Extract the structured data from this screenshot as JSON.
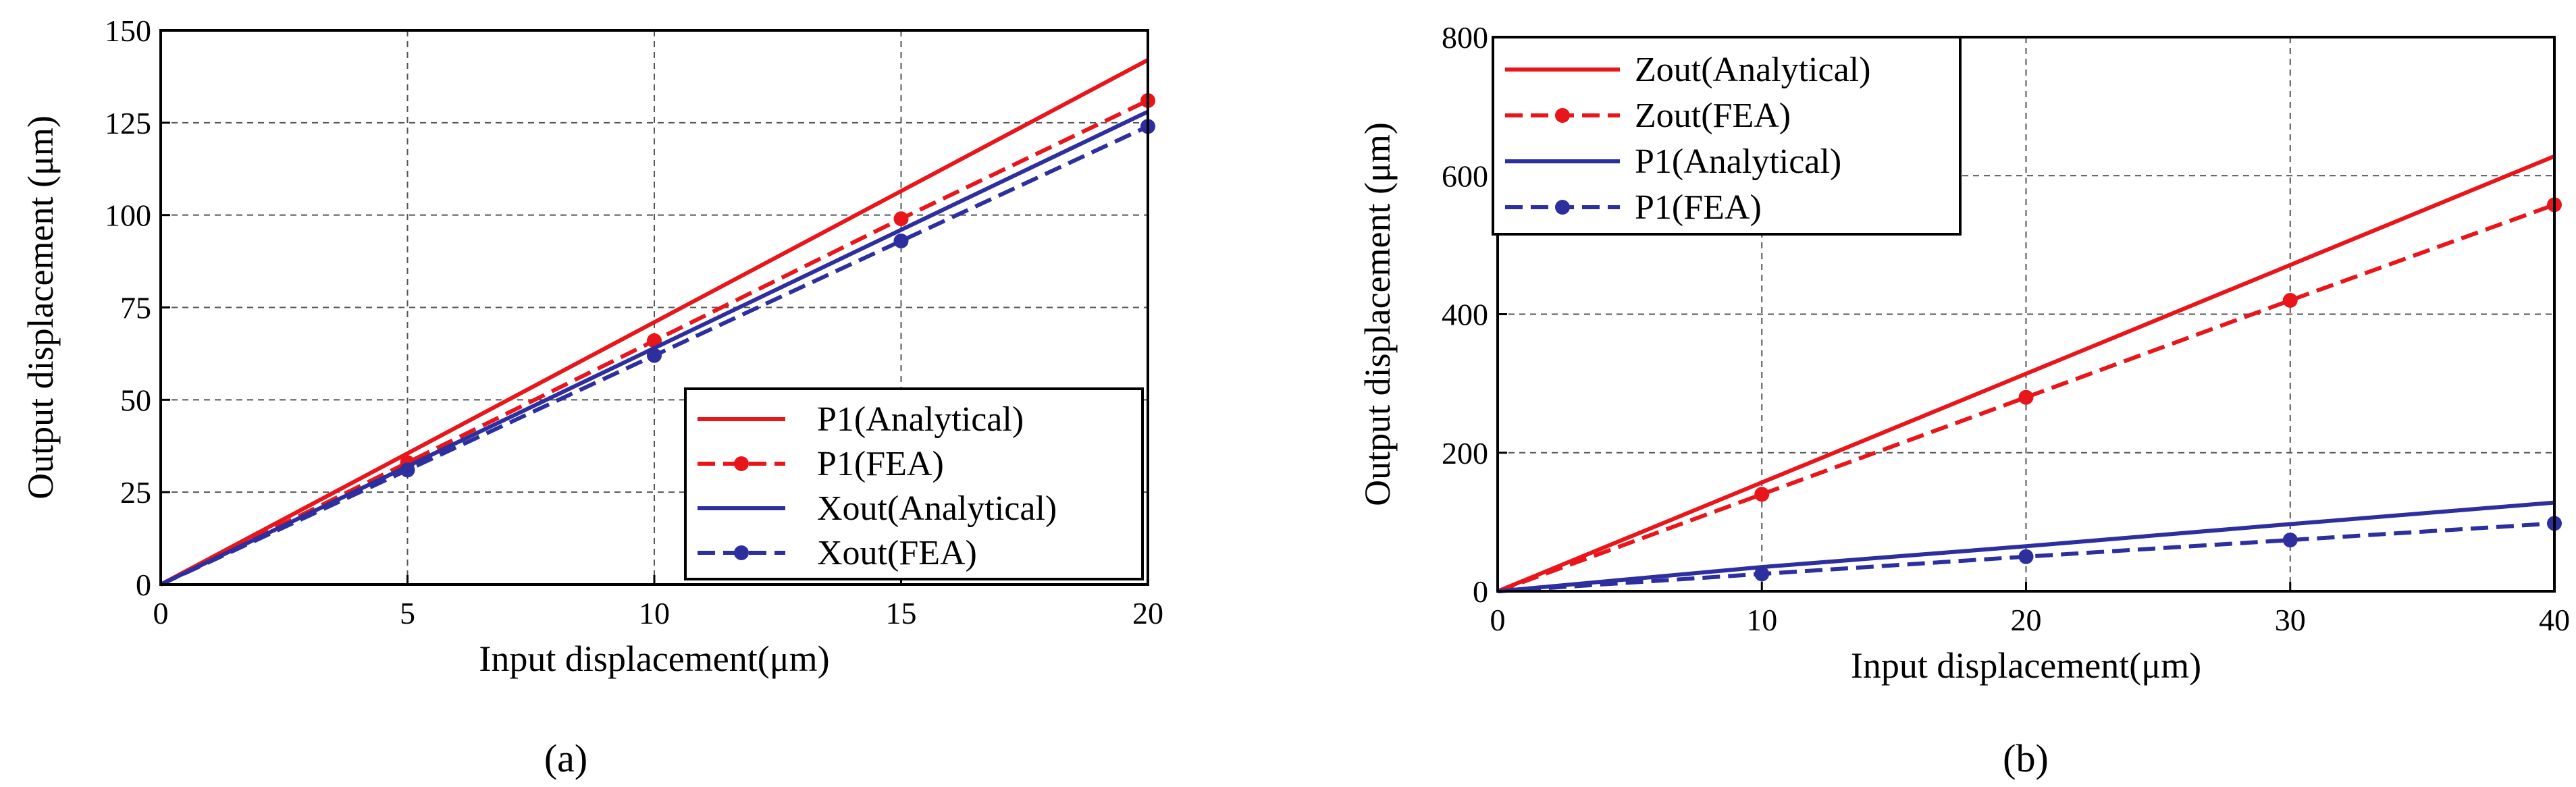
{
  "colors": {
    "red": "#e8161b",
    "blue": "#2e2f9e",
    "grid": "#555555",
    "axis": "#000000"
  },
  "chart_data": [
    {
      "id": "a",
      "type": "line",
      "caption": "(a)",
      "xlabel": "Input displacement(μm)",
      "ylabel": "Output displacement (μm)",
      "xlim": [
        0,
        20
      ],
      "ylim": [
        0,
        150
      ],
      "xticks": [
        0,
        5,
        10,
        15,
        20
      ],
      "yticks": [
        0,
        25,
        50,
        75,
        100,
        125,
        150
      ],
      "grid": true,
      "legend_position": "bottom-right",
      "series": [
        {
          "name": "P1(Analytical)",
          "color": "red",
          "dash": "solid",
          "markers": false,
          "x": [
            0,
            20
          ],
          "y": [
            0,
            142
          ]
        },
        {
          "name": "P1(FEA)",
          "color": "red",
          "dash": "dashed",
          "markers": true,
          "x": [
            0,
            5,
            10,
            15,
            20
          ],
          "y": [
            0,
            33,
            66,
            99,
            131
          ]
        },
        {
          "name": "Xout(Analytical)",
          "color": "blue",
          "dash": "solid",
          "markers": false,
          "x": [
            0,
            20
          ],
          "y": [
            0,
            128
          ]
        },
        {
          "name": "Xout(FEA)",
          "color": "blue",
          "dash": "dashed",
          "markers": true,
          "x": [
            0,
            5,
            10,
            15,
            20
          ],
          "y": [
            0,
            31,
            62,
            93,
            124
          ]
        }
      ]
    },
    {
      "id": "b",
      "type": "line",
      "caption": "(b)",
      "xlabel": "Input displacement(μm)",
      "ylabel": "Output displacement (μm)",
      "xlim": [
        0,
        40
      ],
      "ylim": [
        0,
        800
      ],
      "xticks": [
        0,
        10,
        20,
        30,
        40
      ],
      "yticks": [
        0,
        200,
        400,
        600,
        800
      ],
      "grid": true,
      "legend_position": "top-left",
      "series": [
        {
          "name": "Zout(Analytical)",
          "color": "red",
          "dash": "solid",
          "markers": false,
          "x": [
            0,
            40
          ],
          "y": [
            0,
            628
          ]
        },
        {
          "name": "Zout(FEA)",
          "color": "red",
          "dash": "dashed",
          "markers": true,
          "x": [
            0,
            10,
            20,
            30,
            40
          ],
          "y": [
            0,
            140,
            280,
            420,
            558
          ]
        },
        {
          "name": "P1(Analytical)",
          "color": "blue",
          "dash": "solid",
          "markers": false,
          "x": [
            0,
            10,
            20,
            30,
            40
          ],
          "y": [
            0,
            35,
            65,
            97,
            128
          ]
        },
        {
          "name": "P1(FEA)",
          "color": "blue",
          "dash": "dashed",
          "markers": true,
          "x": [
            0,
            10,
            20,
            30,
            40
          ],
          "y": [
            0,
            25,
            50,
            74,
            98
          ]
        }
      ]
    }
  ]
}
